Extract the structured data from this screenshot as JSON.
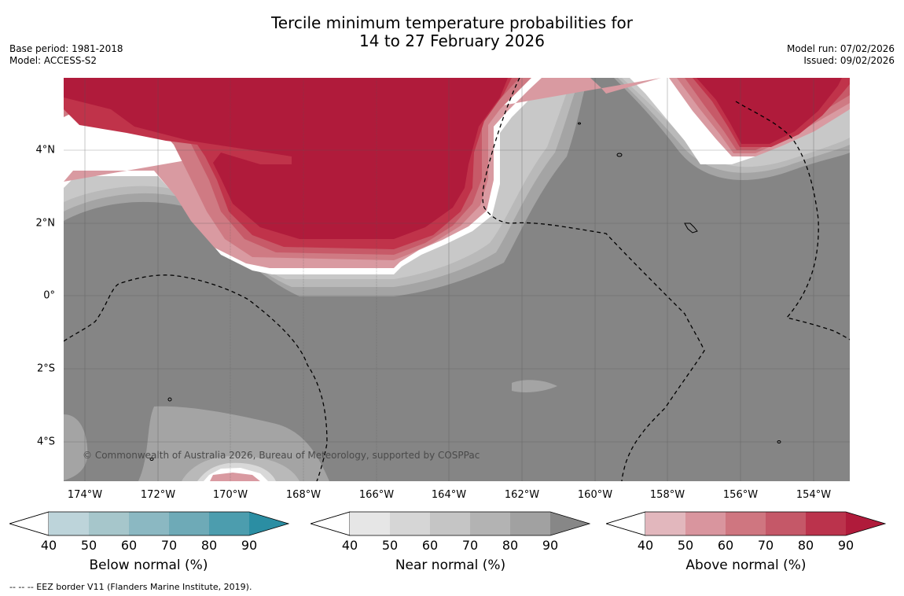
{
  "title": {
    "line1": "Tercile minimum temperature probabilities for",
    "line2": "14 to 27 February 2026"
  },
  "meta": {
    "base_period": "Base period: 1981-2018",
    "model": "Model: ACCESS-S2",
    "model_run": "Model run: 07/02/2026",
    "issued": "Issued: 09/02/2026"
  },
  "map": {
    "copyright": "© Commonwealth of Australia 2026, Bureau of Meteorology, supported by COSPPac",
    "lat_labels": [
      "4°N",
      "2°N",
      "0°",
      "2°S",
      "4°S"
    ],
    "lon_labels": [
      "174°W",
      "172°W",
      "170°W",
      "168°W",
      "166°W",
      "164°W",
      "162°W",
      "160°W",
      "158°W",
      "156°W",
      "154°W"
    ],
    "dominant_field": "Near normal (%)",
    "colors": {
      "near_90": "#858585",
      "near_80": "#a4a4a4",
      "near_70": "#b9b9b9",
      "near_60": "#c8c8c8",
      "near_50": "#d8d8d8",
      "above_90": "#b01b3b",
      "above_80": "#c0334a",
      "above_70": "#c75a68",
      "above_60": "#cf7a83",
      "above_50": "#d99aa1",
      "gridline": "#555555"
    }
  },
  "colorbars": [
    {
      "title": "Below normal (%)",
      "ticks": [
        "40",
        "50",
        "60",
        "70",
        "80",
        "90"
      ],
      "colors": [
        "#bdd4da",
        "#a6c6cb",
        "#8bb8c2",
        "#6eaab7",
        "#4c9dae",
        "#2b8ea3"
      ]
    },
    {
      "title": "Near normal (%)",
      "ticks": [
        "40",
        "50",
        "60",
        "70",
        "80",
        "90"
      ],
      "colors": [
        "#e6e6e6",
        "#d6d6d6",
        "#c5c5c5",
        "#b3b3b3",
        "#a1a1a1",
        "#878787"
      ]
    },
    {
      "title": "Above normal (%)",
      "ticks": [
        "40",
        "50",
        "60",
        "70",
        "80",
        "90"
      ],
      "colors": [
        "#e2b7bd",
        "#d9959e",
        "#cf7680",
        "#c55868",
        "#bb334c",
        "#b01b3b"
      ]
    }
  ],
  "footnote": "--  --  -- EEZ border V11 (Flanders Marine Institute, 2019)."
}
